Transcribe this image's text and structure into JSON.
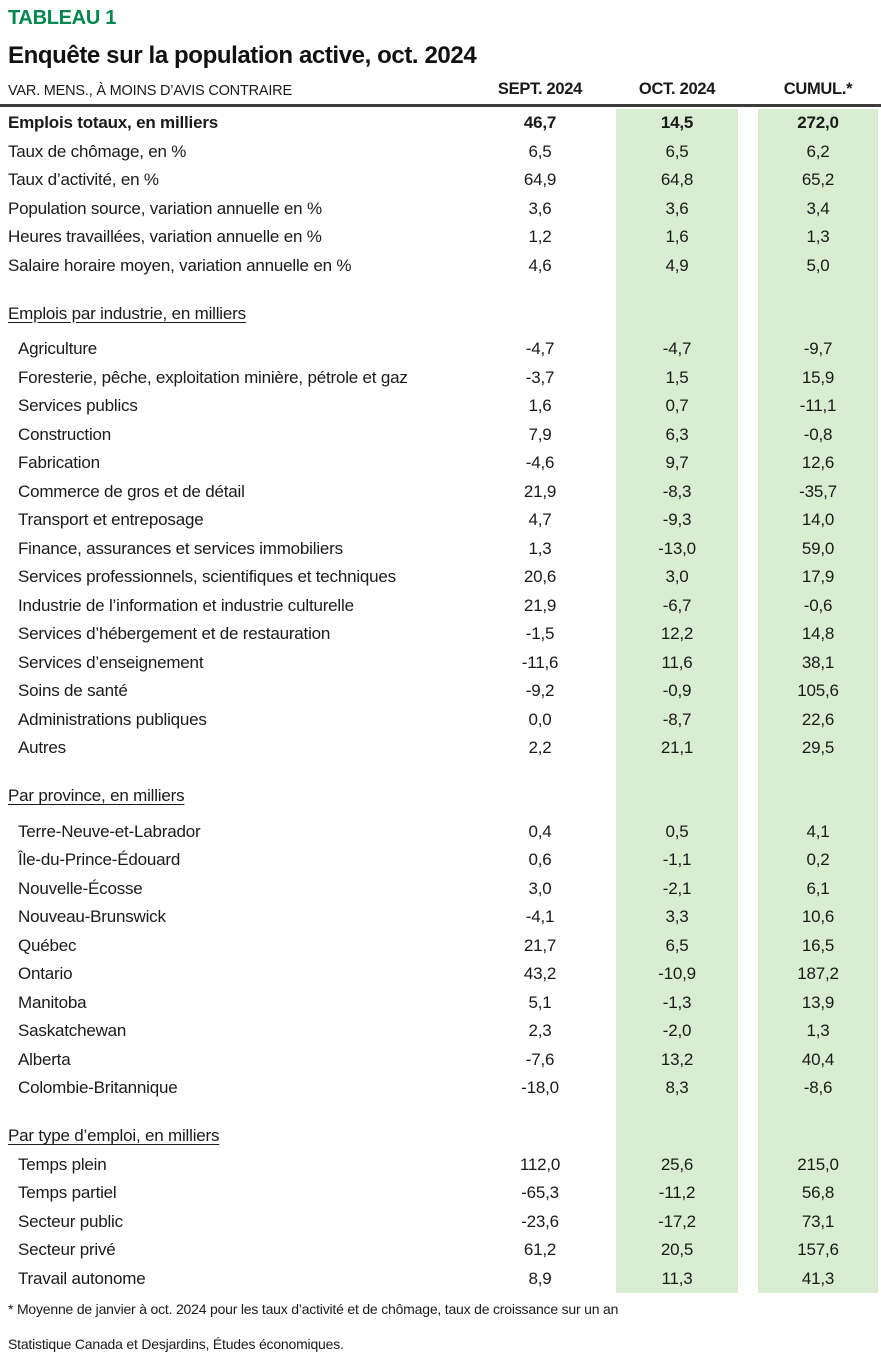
{
  "colors": {
    "accent_green": "#00874E",
    "highlight_band_green": "#D9EDD2",
    "header_rule": "#3C3C3B",
    "text": "#1A1A1A"
  },
  "chart_data": {
    "type": "table",
    "tag": "TABLEAU 1",
    "title": "Enquête sur la population active, oct. 2024",
    "row_header_label": "VAR. MENS., À MOINS D’AVIS CONTRAIRE",
    "columns": [
      "SEPT. 2024",
      "OCT. 2024",
      "CUMUL.*"
    ],
    "highlighted_columns": [
      "OCT. 2024",
      "CUMUL.*"
    ],
    "decimal_format": "french-comma",
    "sections": [
      {
        "heading": null,
        "rows": [
          {
            "label": "Emplois totaux, en milliers",
            "bold": true,
            "values": [
              "46,7",
              "14,5",
              "272,0"
            ]
          },
          {
            "label": "Taux de chômage, en %",
            "values": [
              "6,5",
              "6,5",
              "6,2"
            ]
          },
          {
            "label": "Taux d’activité, en %",
            "values": [
              "64,9",
              "64,8",
              "65,2"
            ]
          },
          {
            "label": "Population source, variation annuelle en %",
            "values": [
              "3,6",
              "3,6",
              "3,4"
            ]
          },
          {
            "label": "Heures travaillées, variation annuelle en %",
            "values": [
              "1,2",
              "1,6",
              "1,3"
            ]
          },
          {
            "label": "Salaire horaire moyen, variation annuelle en %",
            "values": [
              "4,6",
              "4,9",
              "5,0"
            ]
          }
        ]
      },
      {
        "heading": "Emplois par industrie, en milliers",
        "rows": [
          {
            "label": "Agriculture",
            "values": [
              "-4,7",
              "-4,7",
              "-9,7"
            ]
          },
          {
            "label": "Foresterie, pêche, exploitation minière, pétrole et gaz",
            "values": [
              "-3,7",
              "1,5",
              "15,9"
            ]
          },
          {
            "label": "Services publics",
            "values": [
              "1,6",
              "0,7",
              "-11,1"
            ]
          },
          {
            "label": "Construction",
            "values": [
              "7,9",
              "6,3",
              "-0,8"
            ]
          },
          {
            "label": "Fabrication",
            "values": [
              "-4,6",
              "9,7",
              "12,6"
            ]
          },
          {
            "label": "Commerce de gros et de détail",
            "values": [
              "21,9",
              "-8,3",
              "-35,7"
            ]
          },
          {
            "label": "Transport et entreposage",
            "values": [
              "4,7",
              "-9,3",
              "14,0"
            ]
          },
          {
            "label": "Finance, assurances et services immobiliers",
            "values": [
              "1,3",
              "-13,0",
              "59,0"
            ]
          },
          {
            "label": "Services professionnels, scientifiques et techniques",
            "values": [
              "20,6",
              "3,0",
              "17,9"
            ]
          },
          {
            "label": "Industrie de l’information et industrie culturelle",
            "values": [
              "21,9",
              "-6,7",
              "-0,6"
            ]
          },
          {
            "label": "Services d’hébergement et de restauration",
            "values": [
              "-1,5",
              "12,2",
              "14,8"
            ]
          },
          {
            "label": "Services d’enseignement",
            "values": [
              "-11,6",
              "11,6",
              "38,1"
            ]
          },
          {
            "label": "Soins de santé",
            "values": [
              "-9,2",
              "-0,9",
              "105,6"
            ]
          },
          {
            "label": "Administrations publiques",
            "values": [
              "0,0",
              "-8,7",
              "22,6"
            ]
          },
          {
            "label": "Autres",
            "values": [
              "2,2",
              "21,1",
              "29,5"
            ]
          }
        ]
      },
      {
        "heading": "Par province, en milliers",
        "rows": [
          {
            "label": "Terre-Neuve-et-Labrador",
            "values": [
              "0,4",
              "0,5",
              "4,1"
            ]
          },
          {
            "label": "Île-du-Prince-Édouard",
            "values": [
              "0,6",
              "-1,1",
              "0,2"
            ]
          },
          {
            "label": "Nouvelle-Écosse",
            "values": [
              "3,0",
              "-2,1",
              "6,1"
            ]
          },
          {
            "label": "Nouveau-Brunswick",
            "values": [
              "-4,1",
              "3,3",
              "10,6"
            ]
          },
          {
            "label": "Québec",
            "values": [
              "21,7",
              "6,5",
              "16,5"
            ]
          },
          {
            "label": "Ontario",
            "values": [
              "43,2",
              "-10,9",
              "187,2"
            ]
          },
          {
            "label": "Manitoba",
            "values": [
              "5,1",
              "-1,3",
              "13,9"
            ]
          },
          {
            "label": "Saskatchewan",
            "values": [
              "2,3",
              "-2,0",
              "1,3"
            ]
          },
          {
            "label": "Alberta",
            "values": [
              "-7,6",
              "13,2",
              "40,4"
            ]
          },
          {
            "label": "Colombie-Britannique",
            "values": [
              "-18,0",
              "8,3",
              "-8,6"
            ]
          }
        ]
      },
      {
        "heading": "Par type d’emploi, en milliers",
        "rows": [
          {
            "label": "Temps plein",
            "values": [
              "112,0",
              "25,6",
              "215,0"
            ]
          },
          {
            "label": "Temps partiel",
            "values": [
              "-65,3",
              "-11,2",
              "56,8"
            ]
          },
          {
            "label": "Secteur public",
            "values": [
              "-23,6",
              "-17,2",
              "73,1"
            ]
          },
          {
            "label": "Secteur privé",
            "values": [
              "61,2",
              "20,5",
              "157,6"
            ]
          },
          {
            "label": "Travail autonome",
            "values": [
              "8,9",
              "11,3",
              "41,3"
            ]
          }
        ]
      }
    ],
    "footnotes": [
      "* Moyenne de janvier à oct. 2024 pour les taux d’activité et de chômage, taux de croissance sur un an",
      "Statistique Canada et Desjardins, Études économiques."
    ]
  }
}
